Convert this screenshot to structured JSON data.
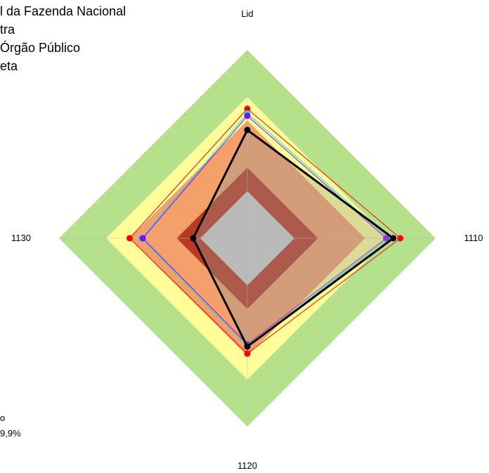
{
  "chart_data": {
    "type": "radar",
    "axes": [
      "Lid",
      "1110",
      "1120",
      "1130"
    ],
    "axis_order_note": "",
    "range": [
      0,
      4
    ],
    "bands": [
      {
        "to": 4,
        "color": "#b5e08c"
      },
      {
        "to": 3,
        "color": "#ffff99"
      },
      {
        "to": 2.5,
        "color": "#f4a06a"
      },
      {
        "to": 1.5,
        "color": "#b63a22"
      },
      {
        "to": 1,
        "color": "#cccccc"
      }
    ],
    "series": [
      {
        "name": "l da Fazenda Nacional",
        "color": "#ff0000",
        "values": [
          2.75,
          3.25,
          2.45,
          2.5
        ]
      },
      {
        "name": "tra",
        "color": "#00e5ee",
        "values": [
          2.65,
          3.0,
          2.3,
          2.25
        ]
      },
      {
        "name": "Órgão Público",
        "color": "#8b00ff",
        "values": [
          2.6,
          2.95,
          2.25,
          2.22
        ]
      },
      {
        "name": "eta",
        "color": "#000000",
        "values": [
          2.3,
          3.1,
          2.3,
          1.15
        ]
      }
    ],
    "legend_placement": "top-left",
    "grid": true,
    "footnote": {
      "line1": "o",
      "line2": "9,9%"
    }
  }
}
